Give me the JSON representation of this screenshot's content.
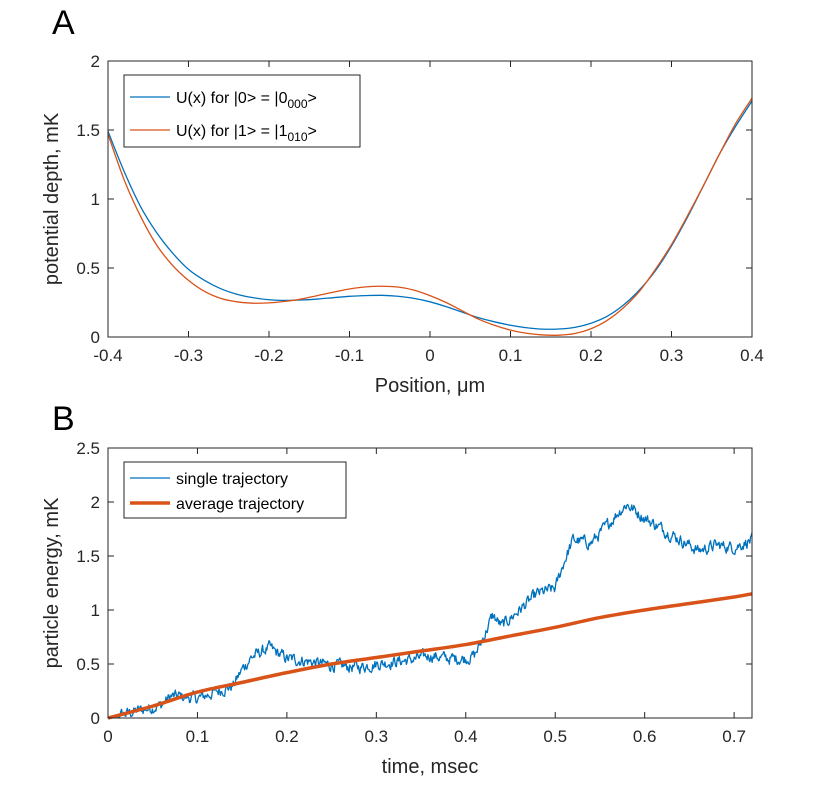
{
  "panels": [
    {
      "letter": "A"
    },
    {
      "letter": "B"
    }
  ],
  "colors": {
    "blue": "#0072BD",
    "orange": "#D95319",
    "axis": "#262626"
  },
  "chart_data": [
    {
      "type": "line",
      "xlabel": "Position, μm",
      "ylabel": "potential depth, mK",
      "xlim": [
        -0.4,
        0.4
      ],
      "ylim": [
        0,
        2
      ],
      "xticks": [
        "-0.4",
        "-0.3",
        "-0.2",
        "-0.1",
        "0",
        "0.1",
        "0.2",
        "0.3",
        "0.4"
      ],
      "yticks": [
        "0",
        "0.5",
        "1",
        "1.5",
        "2"
      ],
      "legend_position": "top-left",
      "grid": false,
      "series": [
        {
          "name": "U(x) for |0> = |0",
          "name_sub": "000",
          "name_tail": ">",
          "color": "#0072BD",
          "x": [
            -0.4,
            -0.38,
            -0.36,
            -0.34,
            -0.32,
            -0.3,
            -0.28,
            -0.26,
            -0.24,
            -0.22,
            -0.2,
            -0.18,
            -0.16,
            -0.14,
            -0.12,
            -0.1,
            -0.08,
            -0.06,
            -0.04,
            -0.02,
            0.0,
            0.02,
            0.04,
            0.06,
            0.08,
            0.1,
            0.12,
            0.14,
            0.16,
            0.18,
            0.2,
            0.22,
            0.24,
            0.26,
            0.28,
            0.3,
            0.32,
            0.34,
            0.36,
            0.38,
            0.4
          ],
          "y": [
            1.49,
            1.2,
            0.95,
            0.76,
            0.61,
            0.49,
            0.41,
            0.35,
            0.31,
            0.285,
            0.27,
            0.265,
            0.268,
            0.275,
            0.285,
            0.295,
            0.3,
            0.302,
            0.295,
            0.28,
            0.255,
            0.22,
            0.18,
            0.14,
            0.11,
            0.085,
            0.067,
            0.057,
            0.058,
            0.07,
            0.1,
            0.15,
            0.23,
            0.34,
            0.48,
            0.66,
            0.87,
            1.1,
            1.33,
            1.53,
            1.71
          ]
        },
        {
          "name": "U(x) for |1> = |1",
          "name_sub": "010",
          "name_tail": ">",
          "color": "#D95319",
          "x": [
            -0.4,
            -0.38,
            -0.36,
            -0.34,
            -0.32,
            -0.3,
            -0.28,
            -0.26,
            -0.24,
            -0.22,
            -0.2,
            -0.18,
            -0.16,
            -0.14,
            -0.12,
            -0.1,
            -0.08,
            -0.06,
            -0.04,
            -0.02,
            0.0,
            0.02,
            0.04,
            0.06,
            0.08,
            0.1,
            0.12,
            0.14,
            0.16,
            0.18,
            0.2,
            0.22,
            0.24,
            0.26,
            0.28,
            0.3,
            0.32,
            0.34,
            0.36,
            0.38,
            0.4
          ],
          "y": [
            1.47,
            1.14,
            0.88,
            0.67,
            0.52,
            0.41,
            0.33,
            0.28,
            0.255,
            0.245,
            0.247,
            0.258,
            0.275,
            0.3,
            0.325,
            0.348,
            0.363,
            0.368,
            0.362,
            0.34,
            0.3,
            0.25,
            0.19,
            0.13,
            0.085,
            0.05,
            0.027,
            0.015,
            0.013,
            0.025,
            0.06,
            0.12,
            0.21,
            0.33,
            0.49,
            0.67,
            0.88,
            1.1,
            1.33,
            1.55,
            1.73
          ]
        }
      ]
    },
    {
      "type": "line",
      "xlabel": "time, msec",
      "ylabel": "particle energy, mK",
      "xlim": [
        0,
        0.72
      ],
      "ylim": [
        0,
        2.5
      ],
      "xticks": [
        "0",
        "0.1",
        "0.2",
        "0.3",
        "0.4",
        "0.5",
        "0.6",
        "0.7"
      ],
      "yticks": [
        "0",
        "0.5",
        "1",
        "1.5",
        "2",
        "2.5"
      ],
      "legend_position": "top-left",
      "grid": false,
      "series": [
        {
          "name": "single trajectory",
          "color": "#0072BD",
          "noise": true,
          "x": [
            0,
            0.02,
            0.04,
            0.06,
            0.07,
            0.08,
            0.1,
            0.12,
            0.14,
            0.15,
            0.16,
            0.18,
            0.2,
            0.22,
            0.24,
            0.26,
            0.28,
            0.3,
            0.32,
            0.34,
            0.36,
            0.38,
            0.4,
            0.41,
            0.42,
            0.43,
            0.44,
            0.46,
            0.48,
            0.5,
            0.51,
            0.52,
            0.54,
            0.56,
            0.57,
            0.58,
            0.6,
            0.62,
            0.64,
            0.66,
            0.68,
            0.7,
            0.72
          ],
          "y": [
            0,
            0.04,
            0.08,
            0.12,
            0.2,
            0.2,
            0.18,
            0.24,
            0.3,
            0.45,
            0.56,
            0.65,
            0.55,
            0.53,
            0.5,
            0.48,
            0.47,
            0.5,
            0.52,
            0.54,
            0.58,
            0.55,
            0.55,
            0.58,
            0.75,
            0.95,
            0.85,
            1.0,
            1.15,
            1.2,
            1.45,
            1.65,
            1.62,
            1.8,
            1.9,
            1.98,
            1.85,
            1.75,
            1.65,
            1.55,
            1.6,
            1.58,
            1.65
          ]
        },
        {
          "name": "average trajectory",
          "color": "#D95319",
          "thick": true,
          "x": [
            0,
            0.05,
            0.1,
            0.15,
            0.2,
            0.25,
            0.3,
            0.35,
            0.4,
            0.45,
            0.5,
            0.55,
            0.6,
            0.65,
            0.7,
            0.72
          ],
          "y": [
            0,
            0.11,
            0.24,
            0.33,
            0.42,
            0.5,
            0.56,
            0.62,
            0.68,
            0.76,
            0.84,
            0.93,
            1.0,
            1.06,
            1.12,
            1.15
          ]
        }
      ]
    }
  ]
}
